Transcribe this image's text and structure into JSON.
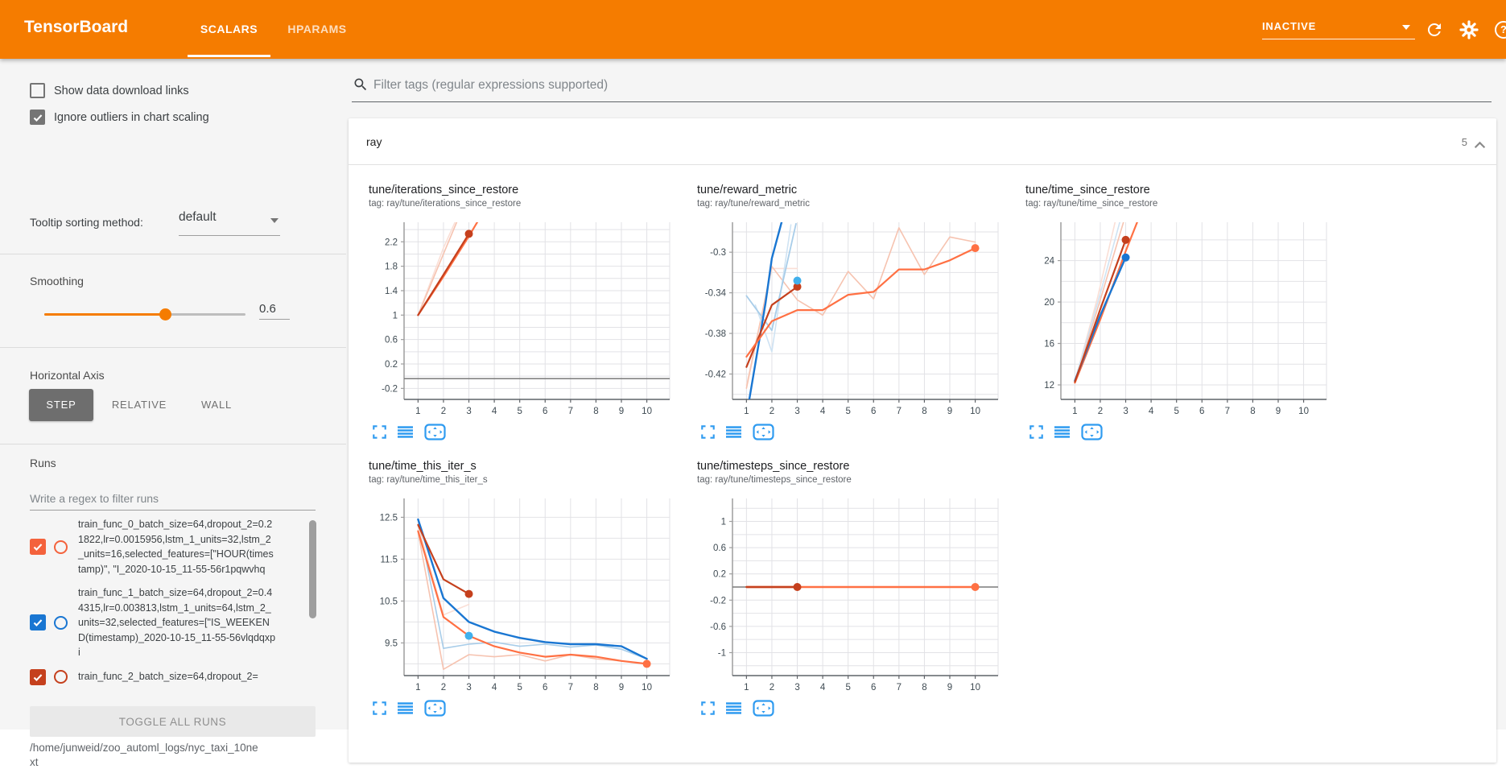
{
  "header": {
    "title": "TensorBoard",
    "tabs": [
      {
        "label": "SCALARS",
        "active": true
      },
      {
        "label": "HPARAMS",
        "active": false
      }
    ],
    "status": "INACTIVE",
    "accent_color": "#f57c00"
  },
  "icons": {
    "search-icon": "magnifier",
    "refresh-icon": "circular-arrow",
    "settings-icon": "gear",
    "help-icon": "?",
    "dropdown-caret": "▾",
    "collapse-icon": "∧",
    "fullscreen-icon": "corner-brackets",
    "data-download-icon": "stacked-bars",
    "fit-domain-icon": "boxed-arrows",
    "checkmark": "✓"
  },
  "sidebar": {
    "checkboxes": [
      {
        "label": "Show data download links",
        "checked": false
      },
      {
        "label": "Ignore outliers in chart scaling",
        "checked": true
      }
    ],
    "tooltip_sorting": {
      "label": "Tooltip sorting method:",
      "value": "default"
    },
    "smoothing": {
      "label": "Smoothing",
      "value": "0.6",
      "percent": 60
    },
    "horizontal_axis": {
      "label": "Horizontal Axis",
      "options": [
        "STEP",
        "RELATIVE",
        "WALL"
      ],
      "selected": "STEP"
    },
    "runs": {
      "label": "Runs",
      "filter_placeholder": "Write a regex to filter runs",
      "items": [
        {
          "name": "train_func_0_batch_size=64,dropout_2=0.21822,lr=0.0015956,lstm_1_units=32,lstm_2_units=16,selected_features=[\"HOUR(timestamp)\", \"I_2020-10-15_11-55-56r1pqwvhq",
          "checked": true,
          "color": "#f4623c"
        },
        {
          "name": "train_func_1_batch_size=64,dropout_2=0.44315,lr=0.003813,lstm_1_units=64,lstm_2_units=32,selected_features=[\"IS_WEEKEND(timestamp)_2020-10-15_11-55-56vlqdqxpi",
          "checked": true,
          "color": "#1976d2"
        },
        {
          "name": "train_func_2_batch_size=64,dropout_2=",
          "checked": true,
          "color": "#c5401d"
        }
      ],
      "toggle_all": "TOGGLE ALL RUNS",
      "log_path": "/home/junweid/zoo_automl_logs/nyc_taxi_10next"
    }
  },
  "main": {
    "filter_placeholder": "Filter tags (regular expressions supported)",
    "section": {
      "name": "ray",
      "count": "5"
    },
    "chart_actions": [
      "fullscreen-icon",
      "data-download-icon",
      "fit-domain-icon"
    ]
  },
  "palette": {
    "orange": "#ff7043",
    "darkred": "#c5401d",
    "blue": "#1976d2",
    "cyan": "#41b0ec",
    "lightpink": "#f6c3b0",
    "lightpink_faint": "#fadfd6",
    "lightblue": "#a8cde9",
    "lightblue_faint": "#cfe3f3",
    "gray": "#7a7a7a",
    "action_blue": "#2f9bf0"
  },
  "chart_data": [
    {
      "type": "line",
      "title": "tune/iterations_since_restore",
      "tag": "tag: ray/tune/iterations_since_restore",
      "xlim": [
        0.45,
        10.9
      ],
      "ylim": [
        -0.38,
        2.52
      ],
      "xticks": [
        1,
        2,
        3,
        4,
        5,
        6,
        7,
        8,
        9,
        10
      ],
      "yticks": [
        -0.2,
        0.2,
        0.6,
        1,
        1.4,
        1.8,
        2.2
      ],
      "ygrid_step": 0.2,
      "series": [
        {
          "name": "run0-raw",
          "color": "#fadfd6",
          "width": 1.6,
          "points": [
            [
              1,
              1
            ],
            [
              2,
              2.1
            ],
            [
              2.7,
              2.75
            ]
          ]
        },
        {
          "name": "run2-raw",
          "color": "#f6c3b0",
          "width": 1.6,
          "points": [
            [
              1,
              1
            ],
            [
              2,
              2
            ],
            [
              2.9,
              2.9
            ]
          ]
        },
        {
          "name": "run0-smoothed",
          "color": "#ff7043",
          "width": 2.2,
          "points": [
            [
              1,
              1
            ],
            [
              2,
              1.63
            ],
            [
              3,
              2.29
            ],
            [
              3.8,
              2.85
            ]
          ]
        },
        {
          "name": "run2-smoothed",
          "color": "#c5401d",
          "width": 2.2,
          "points": [
            [
              1,
              1
            ],
            [
              2,
              1.66
            ],
            [
              3,
              2.33
            ]
          ]
        },
        {
          "name": "flat-zero",
          "color": "#7a7a7a",
          "width": 1.5,
          "points": [
            [
              0.45,
              -0.04
            ],
            [
              10.9,
              -0.04
            ]
          ]
        }
      ],
      "markers": [
        {
          "x": 3,
          "y": 2.33,
          "color": "#c5401d"
        }
      ]
    },
    {
      "type": "line",
      "title": "tune/reward_metric",
      "tag": "tag: ray/tune/reward_metric",
      "xlim": [
        0.45,
        10.9
      ],
      "ylim": [
        -0.445,
        -0.2705
      ],
      "xticks": [
        1,
        2,
        3,
        4,
        5,
        6,
        7,
        8,
        9,
        10
      ],
      "yticks": [
        -0.42,
        -0.38,
        -0.34,
        -0.3
      ],
      "ygrid_step": 0.02,
      "series": [
        {
          "name": "run2-raw",
          "color": "#fadfd6",
          "width": 1.6,
          "points": [
            [
              1,
              -0.431
            ],
            [
              2,
              -0.316
            ],
            [
              3,
              -0.316
            ]
          ]
        },
        {
          "name": "run0-raw",
          "color": "#f6c3b0",
          "width": 1.6,
          "points": [
            [
              1,
              -0.434
            ],
            [
              2,
              -0.314
            ],
            [
              3,
              -0.347
            ],
            [
              4,
              -0.362
            ],
            [
              5,
              -0.319
            ],
            [
              6,
              -0.346
            ],
            [
              7,
              -0.276
            ],
            [
              8,
              -0.322
            ],
            [
              9,
              -0.285
            ],
            [
              10,
              -0.29
            ]
          ]
        },
        {
          "name": "run1-raw-b",
          "color": "#cfe3f3",
          "width": 1.6,
          "points": [
            [
              1.35,
              -0.352
            ],
            [
              2,
              -0.398
            ],
            [
              2.75,
              -0.273
            ]
          ]
        },
        {
          "name": "run1-raw",
          "color": "#a8cde9",
          "width": 1.8,
          "points": [
            [
              1,
              -0.343
            ],
            [
              2,
              -0.377
            ],
            [
              2.95,
              -0.272
            ]
          ]
        },
        {
          "name": "run1-smoothed",
          "color": "#1976d2",
          "width": 2.4,
          "points": [
            [
              1.1,
              -0.447
            ],
            [
              1.75,
              -0.35
            ],
            [
              2,
              -0.306
            ],
            [
              2.55,
              -0.255
            ]
          ]
        },
        {
          "name": "run2-smoothed",
          "color": "#c5401d",
          "width": 2.2,
          "points": [
            [
              1,
              -0.413
            ],
            [
              2,
              -0.352
            ],
            [
              3,
              -0.334
            ]
          ]
        },
        {
          "name": "run0-smoothed",
          "color": "#ff7043",
          "width": 2.2,
          "points": [
            [
              1,
              -0.403
            ],
            [
              2,
              -0.368
            ],
            [
              3,
              -0.357
            ],
            [
              4,
              -0.357
            ],
            [
              5,
              -0.342
            ],
            [
              6,
              -0.339
            ],
            [
              7,
              -0.317
            ],
            [
              8,
              -0.317
            ],
            [
              9,
              -0.308
            ],
            [
              10,
              -0.296
            ]
          ]
        }
      ],
      "markers": [
        {
          "x": 3,
          "y": -0.334,
          "color": "#c5401d"
        },
        {
          "x": 3,
          "y": -0.328,
          "color": "#41b0ec"
        },
        {
          "x": 10,
          "y": -0.296,
          "color": "#ff7043"
        }
      ]
    },
    {
      "type": "line",
      "title": "tune/time_since_restore",
      "tag": "tag: ray/tune/time_since_restore",
      "xlim": [
        0.45,
        10.9
      ],
      "ylim": [
        10.6,
        27.7
      ],
      "xticks": [
        1,
        2,
        3,
        4,
        5,
        6,
        7,
        8,
        9,
        10
      ],
      "yticks": [
        12,
        16,
        20,
        24
      ],
      "ygrid_step": 2,
      "series": [
        {
          "name": "run0-raw",
          "color": "#fadfd6",
          "width": 1.6,
          "points": [
            [
              1,
              12.3
            ],
            [
              1.9,
              20.5
            ],
            [
              2.6,
              27.9
            ]
          ]
        },
        {
          "name": "run2-raw",
          "color": "#f6c3b0",
          "width": 1.6,
          "points": [
            [
              1,
              12.25
            ],
            [
              2,
              20.2
            ],
            [
              2.95,
              28
            ]
          ]
        },
        {
          "name": "run1-raw",
          "color": "#cfe3f3",
          "width": 1.6,
          "points": [
            [
              1,
              12.4
            ],
            [
              2,
              20.8
            ],
            [
              2.8,
              28
            ]
          ]
        },
        {
          "name": "run0-smoothed",
          "color": "#ff7043",
          "width": 2.2,
          "points": [
            [
              1,
              12.2
            ],
            [
              2,
              18.3
            ],
            [
              3,
              24.9
            ],
            [
              3.5,
              28
            ]
          ]
        },
        {
          "name": "run1-smoothed",
          "color": "#1976d2",
          "width": 2.4,
          "points": [
            [
              1,
              12.4
            ],
            [
              2,
              18.7
            ],
            [
              3,
              24.3
            ]
          ]
        },
        {
          "name": "run2-smoothed",
          "color": "#c5401d",
          "width": 2.2,
          "points": [
            [
              1,
              12.3
            ],
            [
              2,
              19.3
            ],
            [
              3,
              26
            ]
          ]
        }
      ],
      "markers": [
        {
          "x": 3,
          "y": 26,
          "color": "#c5401d"
        },
        {
          "x": 3,
          "y": 24.3,
          "color": "#1976d2"
        }
      ]
    },
    {
      "type": "line",
      "title": "tune/time_this_iter_s",
      "tag": "tag: ray/tune/time_this_iter_s",
      "xlim": [
        0.45,
        10.9
      ],
      "ylim": [
        8.72,
        12.95
      ],
      "xticks": [
        1,
        2,
        3,
        4,
        5,
        6,
        7,
        8,
        9,
        10
      ],
      "yticks": [
        9.5,
        10.5,
        11.5,
        12.5
      ],
      "ygrid_step": 0.5,
      "series": [
        {
          "name": "run1-raw",
          "color": "#a8cde9",
          "width": 1.6,
          "points": [
            [
              1,
              12.45
            ],
            [
              2,
              9.37
            ],
            [
              3,
              9.47
            ],
            [
              4,
              9.52
            ],
            [
              5,
              9.42
            ],
            [
              6,
              9.47
            ],
            [
              7,
              9.4
            ],
            [
              8,
              9.45
            ],
            [
              9,
              9.35
            ],
            [
              10,
              9.12
            ]
          ]
        },
        {
          "name": "run0-raw",
          "color": "#f6c3b0",
          "width": 1.6,
          "points": [
            [
              1,
              12.15
            ],
            [
              2,
              8.87
            ],
            [
              3,
              9.22
            ],
            [
              4,
              9.17
            ],
            [
              5,
              9.22
            ],
            [
              6,
              9.07
            ],
            [
              7,
              9.22
            ],
            [
              8,
              9.12
            ],
            [
              9,
              9.07
            ],
            [
              10,
              9
            ]
          ]
        },
        {
          "name": "run2-raw",
          "color": "#fadfd6",
          "width": 1.6,
          "points": [
            [
              1,
              12.3
            ],
            [
              2,
              10.17
            ],
            [
              3,
              10.42
            ]
          ]
        },
        {
          "name": "run1-smoothed",
          "color": "#1976d2",
          "width": 2.4,
          "points": [
            [
              1,
              12.45
            ],
            [
              2,
              10.57
            ],
            [
              3,
              10
            ],
            [
              4,
              9.77
            ],
            [
              5,
              9.62
            ],
            [
              6,
              9.52
            ],
            [
              7,
              9.47
            ],
            [
              8,
              9.47
            ],
            [
              9,
              9.42
            ],
            [
              10,
              9.12
            ]
          ]
        },
        {
          "name": "run0-smoothed",
          "color": "#ff7043",
          "width": 2.2,
          "points": [
            [
              1,
              12.17
            ],
            [
              2,
              10.12
            ],
            [
              3,
              9.67
            ],
            [
              4,
              9.42
            ],
            [
              5,
              9.27
            ],
            [
              6,
              9.17
            ],
            [
              7,
              9.22
            ],
            [
              8,
              9.17
            ],
            [
              9,
              9.07
            ],
            [
              10,
              9
            ]
          ]
        },
        {
          "name": "run2-smoothed",
          "color": "#c5401d",
          "width": 2.2,
          "points": [
            [
              1,
              12.32
            ],
            [
              2,
              11.02
            ],
            [
              3,
              10.67
            ]
          ]
        }
      ],
      "markers": [
        {
          "x": 3,
          "y": 10.67,
          "color": "#c5401d"
        },
        {
          "x": 3,
          "y": 9.67,
          "color": "#41b0ec"
        },
        {
          "x": 10,
          "y": 9,
          "color": "#ff7043"
        }
      ]
    },
    {
      "type": "line",
      "title": "tune/timesteps_since_restore",
      "tag": "tag: ray/tune/timesteps_since_restore",
      "xlim": [
        0.45,
        10.9
      ],
      "ylim": [
        -1.35,
        1.35
      ],
      "xticks": [
        1,
        2,
        3,
        4,
        5,
        6,
        7,
        8,
        9,
        10
      ],
      "yticks": [
        -1,
        -0.6,
        -0.2,
        0.2,
        0.6,
        1
      ],
      "ygrid_step": 0.2,
      "series": [
        {
          "name": "flat-zero",
          "color": "#7a7a7a",
          "width": 1.5,
          "points": [
            [
              0.45,
              0
            ],
            [
              10.9,
              0
            ]
          ]
        },
        {
          "name": "run0-smoothed",
          "color": "#ff7043",
          "width": 2.4,
          "points": [
            [
              1,
              0
            ],
            [
              10,
              0
            ]
          ]
        },
        {
          "name": "run2-smoothed",
          "color": "#c5401d",
          "width": 2.4,
          "points": [
            [
              1,
              0
            ],
            [
              3,
              0
            ]
          ]
        }
      ],
      "markers": [
        {
          "x": 3,
          "y": 0,
          "color": "#c5401d"
        },
        {
          "x": 10,
          "y": 0,
          "color": "#ff7043"
        }
      ]
    }
  ]
}
